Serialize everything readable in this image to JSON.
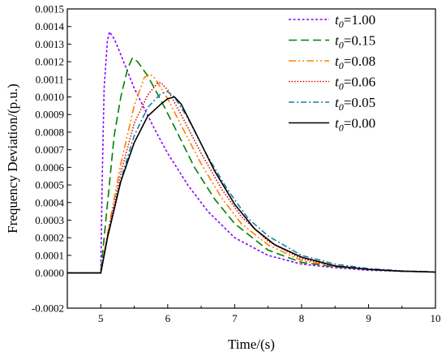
{
  "chart_data": {
    "type": "line",
    "title": "",
    "xlabel": "Time/(s)",
    "ylabel": "Frequency Deviation/(p.u.)",
    "xlim": [
      4.5,
      10
    ],
    "ylim": [
      -0.0002,
      0.0015
    ],
    "x_ticks": [
      "5",
      "6",
      "7",
      "8",
      "9",
      "10"
    ],
    "y_ticks": [
      "-0.0002",
      "0.0000",
      "0.0001",
      "0.0002",
      "0.0003",
      "0.0004",
      "0.0005",
      "0.0006",
      "0.0007",
      "0.0008",
      "0.0009",
      "0.0010",
      "0.0011",
      "0.0012",
      "0.0013",
      "0.0014",
      "0.0015"
    ],
    "grid": false,
    "legend_position": "top-right",
    "series": [
      {
        "legend_prefix": "t",
        "legend_sub": "0",
        "legend_value": "=1.00",
        "color": "#8b00ff",
        "dash": "3,2.5",
        "x": [
          4.5,
          5.0,
          5.02,
          5.05,
          5.1,
          5.13,
          5.2,
          5.3,
          5.5,
          5.8,
          6.0,
          6.3,
          6.6,
          7.0,
          7.5,
          8.0,
          8.5,
          9.0,
          9.5,
          10.0
        ],
        "y": [
          0,
          0,
          0.0005,
          0.00105,
          0.00132,
          0.00137,
          0.00133,
          0.00124,
          0.00105,
          0.00082,
          0.00068,
          0.0005,
          0.00035,
          0.0002,
          0.0001,
          5e-05,
          3e-05,
          1.5e-05,
          1e-05,
          5e-06
        ]
      },
      {
        "legend_prefix": "t",
        "legend_sub": "0",
        "legend_value": "=0.15",
        "color": "#008000",
        "dash": "10,5",
        "x": [
          4.5,
          5.0,
          5.05,
          5.2,
          5.3,
          5.4,
          5.47,
          5.55,
          5.7,
          5.9,
          6.1,
          6.4,
          6.7,
          7.0,
          7.5,
          8.0,
          8.5,
          9.0,
          9.5,
          10.0
        ],
        "y": [
          0,
          0,
          0.0002,
          0.00078,
          0.001,
          0.00116,
          0.00122,
          0.0012,
          0.00112,
          0.00098,
          0.00083,
          0.0006,
          0.00042,
          0.00028,
          0.00013,
          6e-05,
          3.5e-05,
          2e-05,
          1e-05,
          5e-06
        ]
      },
      {
        "legend_prefix": "t",
        "legend_sub": "0",
        "legend_value": "=0.08",
        "color": "#ff8000",
        "dash": "9,3,2,3,2,3",
        "x": [
          4.5,
          5.0,
          5.1,
          5.3,
          5.5,
          5.65,
          5.73,
          5.8,
          6.0,
          6.2,
          6.5,
          6.8,
          7.1,
          7.5,
          8.0,
          8.5,
          9.0,
          9.5,
          10.0
        ],
        "y": [
          0,
          0,
          0.00022,
          0.00062,
          0.00095,
          0.00111,
          0.00113,
          0.00111,
          0.00099,
          0.00084,
          0.00062,
          0.00043,
          0.00028,
          0.00016,
          7e-05,
          3.8e-05,
          2e-05,
          1e-05,
          5e-06
        ]
      },
      {
        "legend_prefix": "t",
        "legend_sub": "0",
        "legend_value": "=0.06",
        "color": "#e00000",
        "dash": "1.5,2",
        "x": [
          4.5,
          5.0,
          5.1,
          5.3,
          5.5,
          5.7,
          5.85,
          5.9,
          6.0,
          6.2,
          6.5,
          6.8,
          7.1,
          7.5,
          8.0,
          8.5,
          9.0,
          9.5,
          10.0
        ],
        "y": [
          0,
          0,
          0.00021,
          0.00057,
          0.00085,
          0.00101,
          0.00108,
          0.00108,
          0.00104,
          0.0009,
          0.00068,
          0.00048,
          0.00032,
          0.00018,
          8e-05,
          4e-05,
          2e-05,
          1e-05,
          5e-06
        ]
      },
      {
        "legend_prefix": "t",
        "legend_sub": "0",
        "legend_value": "=0.05",
        "color": "#1a7fa0",
        "dash": "7,3,2,3",
        "x": [
          4.5,
          5.0,
          5.1,
          5.3,
          5.5,
          5.7,
          5.9,
          6.0,
          6.1,
          6.3,
          6.6,
          6.9,
          7.2,
          7.5,
          8.0,
          8.5,
          9.0,
          9.5,
          10.0
        ],
        "y": [
          0,
          0,
          0.0002,
          0.00053,
          0.00078,
          0.00094,
          0.00102,
          0.00103,
          0.001,
          0.00088,
          0.00066,
          0.00047,
          0.00031,
          0.00021,
          0.0001,
          5e-05,
          2.5e-05,
          1.2e-05,
          6e-06
        ]
      },
      {
        "legend_prefix": "t",
        "legend_sub": "0",
        "legend_value": "=0.00",
        "color": "#000000",
        "dash": "",
        "x": [
          4.5,
          5.0,
          5.1,
          5.3,
          5.5,
          5.7,
          5.9,
          6.0,
          6.1,
          6.2,
          6.4,
          6.7,
          7.0,
          7.3,
          7.6,
          8.0,
          8.5,
          9.0,
          9.5,
          10.0
        ],
        "y": [
          0,
          0,
          0.0002,
          0.00052,
          0.00074,
          0.00089,
          0.00096,
          0.00099,
          0.001,
          0.00096,
          0.00081,
          0.00058,
          0.00039,
          0.00025,
          0.00016,
          9e-05,
          4e-05,
          2e-05,
          1e-05,
          5e-06
        ]
      }
    ]
  }
}
